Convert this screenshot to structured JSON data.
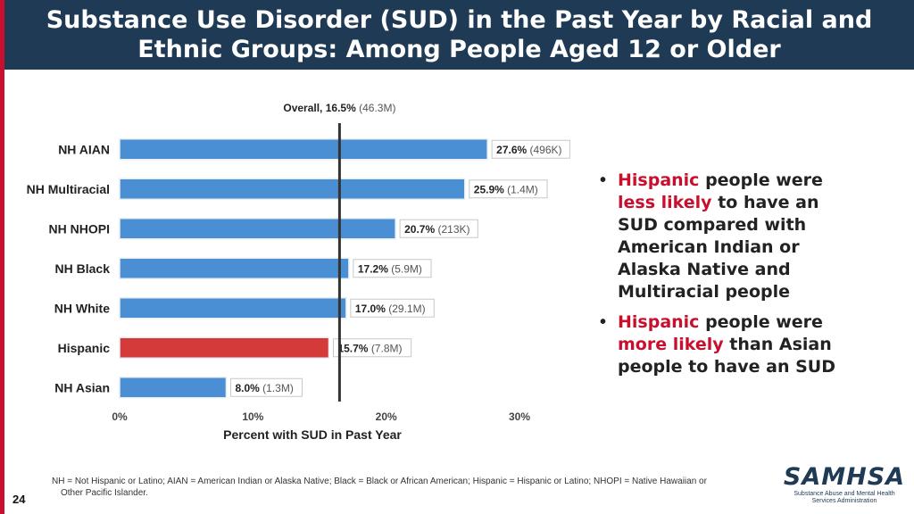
{
  "slide": {
    "title": "Substance Use Disorder (SUD) in the Past Year by Racial and Ethnic Groups: Among People Aged 12 or Older",
    "page_number": "24",
    "footnote_line1": "NH = Not Hispanic or Latino; AIAN = American Indian or Alaska Native; Black = Black or African American; Hispanic = Hispanic or Latino; NHOPI = Native Hawaiian or",
    "footnote_line2": "Other Pacific Islander.",
    "logo_text": "SAMHSA",
    "logo_sub1": "Substance Abuse and Mental Health",
    "logo_sub2": "Services Administration"
  },
  "bullets": [
    {
      "parts": [
        {
          "text": "Hispanic",
          "hl": true
        },
        {
          "text": " people were ",
          "hl": false
        },
        {
          "text": "less likely",
          "hl": true
        },
        {
          "text": " to have an SUD compared with American Indian or Alaska Native and Multiracial people",
          "hl": false
        }
      ]
    },
    {
      "parts": [
        {
          "text": "Hispanic",
          "hl": true
        },
        {
          "text": " people were ",
          "hl": false
        },
        {
          "text": "more likely",
          "hl": true
        },
        {
          "text": " than Asian people to have an SUD",
          "hl": false
        }
      ]
    }
  ],
  "colors": {
    "bar": "#4a8fd4",
    "highlight_bar": "#d43a3a",
    "title_bg": "#1f3a54",
    "accent": "#c8102e"
  },
  "chart_data": {
    "type": "bar",
    "orientation": "horizontal",
    "categories": [
      "NH AIAN",
      "NH Multiracial",
      "NH NHOPI",
      "NH Black",
      "NH White",
      "Hispanic",
      "NH Asian"
    ],
    "values": [
      27.6,
      25.9,
      20.7,
      17.2,
      17.0,
      15.7,
      8.0
    ],
    "value_labels": [
      "27.6%",
      "25.9%",
      "20.7%",
      "17.2%",
      "17.0%",
      "15.7%",
      "8.0%"
    ],
    "count_labels": [
      "(496K)",
      "(1.4M)",
      "(213K)",
      "(5.9M)",
      "(29.1M)",
      "(7.8M)",
      "(1.3M)"
    ],
    "highlight": "Hispanic",
    "reference_line": {
      "value": 16.5,
      "label": "Overall, 16.5%",
      "count": "(46.3M)"
    },
    "xlim": [
      0,
      30
    ],
    "xticks": [
      0,
      10,
      20,
      30
    ],
    "xtick_labels": [
      "0%",
      "10%",
      "20%",
      "30%"
    ],
    "xlabel": "Percent with SUD in Past Year",
    "ylabel": "",
    "title": "",
    "grid": false
  }
}
